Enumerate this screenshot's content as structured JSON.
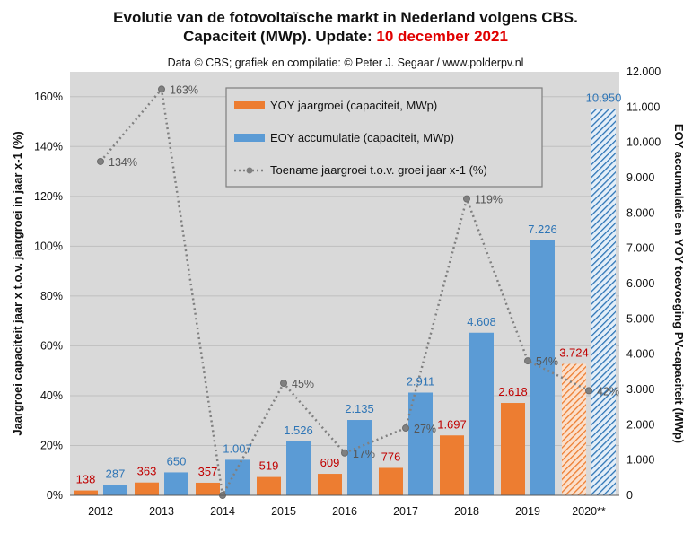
{
  "title": {
    "line1": "Evolutie van de fotovoltaïsche markt in Nederland volgens CBS.",
    "line2_prefix": "Capaciteit (MWp). Update: ",
    "line2_highlight": "10 december 2021"
  },
  "subtitle": "Data © CBS; grafiek en compilatie: © Peter J. Segaar / www.polderpv.nl",
  "colors": {
    "orange": "#ed7d31",
    "blue": "#5b9bd5",
    "line": "#808080",
    "plot_bg": "#d9d9d9",
    "legend_bg": "#d9d9d9",
    "orange_label": "#c00000",
    "blue_label": "#2e75b6"
  },
  "chart_data": {
    "type": "bar",
    "categories": [
      "2012",
      "2013",
      "2014",
      "2015",
      "2016",
      "2017",
      "2018",
      "2019",
      "2020**"
    ],
    "series": [
      {
        "name": "YOY jaargroei (capaciteit, MWp)",
        "axis": "right",
        "values": [
          138,
          363,
          357,
          519,
          609,
          776,
          1697,
          2618,
          3724
        ],
        "labels": [
          "138",
          "363",
          "357",
          "519",
          "609",
          "776",
          "1.697",
          "2.618",
          "3.724"
        ],
        "hatched_last": true
      },
      {
        "name": "EOY accumulatie (capaciteit, MWp)",
        "axis": "right",
        "values": [
          287,
          650,
          1007,
          1526,
          2135,
          2911,
          4608,
          7226,
          10950
        ],
        "labels": [
          "287",
          "650",
          "1.007",
          "1.526",
          "2.135",
          "2.911",
          "4.608",
          "7.226",
          "10.950"
        ],
        "hatched_last": true
      },
      {
        "name": "Toename jaargroei t.o.v. groei jaar x-1 (%)",
        "axis": "left",
        "type": "line",
        "values": [
          134,
          163,
          -2,
          45,
          17,
          27,
          119,
          54,
          42
        ],
        "labels": [
          "134%",
          "163%",
          "",
          "45%",
          "17%",
          "27%",
          "119%",
          "54%",
          "42%"
        ]
      }
    ],
    "ylabel_left": "Jaargroei capaciteit jaar x t.o.v. jaargroei in jaar x-1 (%)",
    "ylabel_right": "EOY accumulatie en YOY toevoeging PV-capaciteit (MWp)",
    "ylim_left": [
      0,
      170
    ],
    "ylim_right": [
      0,
      12000
    ],
    "yticks_left": [
      "0%",
      "20%",
      "40%",
      "60%",
      "80%",
      "100%",
      "120%",
      "140%",
      "160%"
    ],
    "yticks_right": [
      "0",
      "1.000",
      "2.000",
      "3.000",
      "4.000",
      "5.000",
      "6.000",
      "7.000",
      "8.000",
      "9.000",
      "10.000",
      "11.000",
      "12.000"
    ],
    "grid": true,
    "legend_position": "top-center"
  }
}
